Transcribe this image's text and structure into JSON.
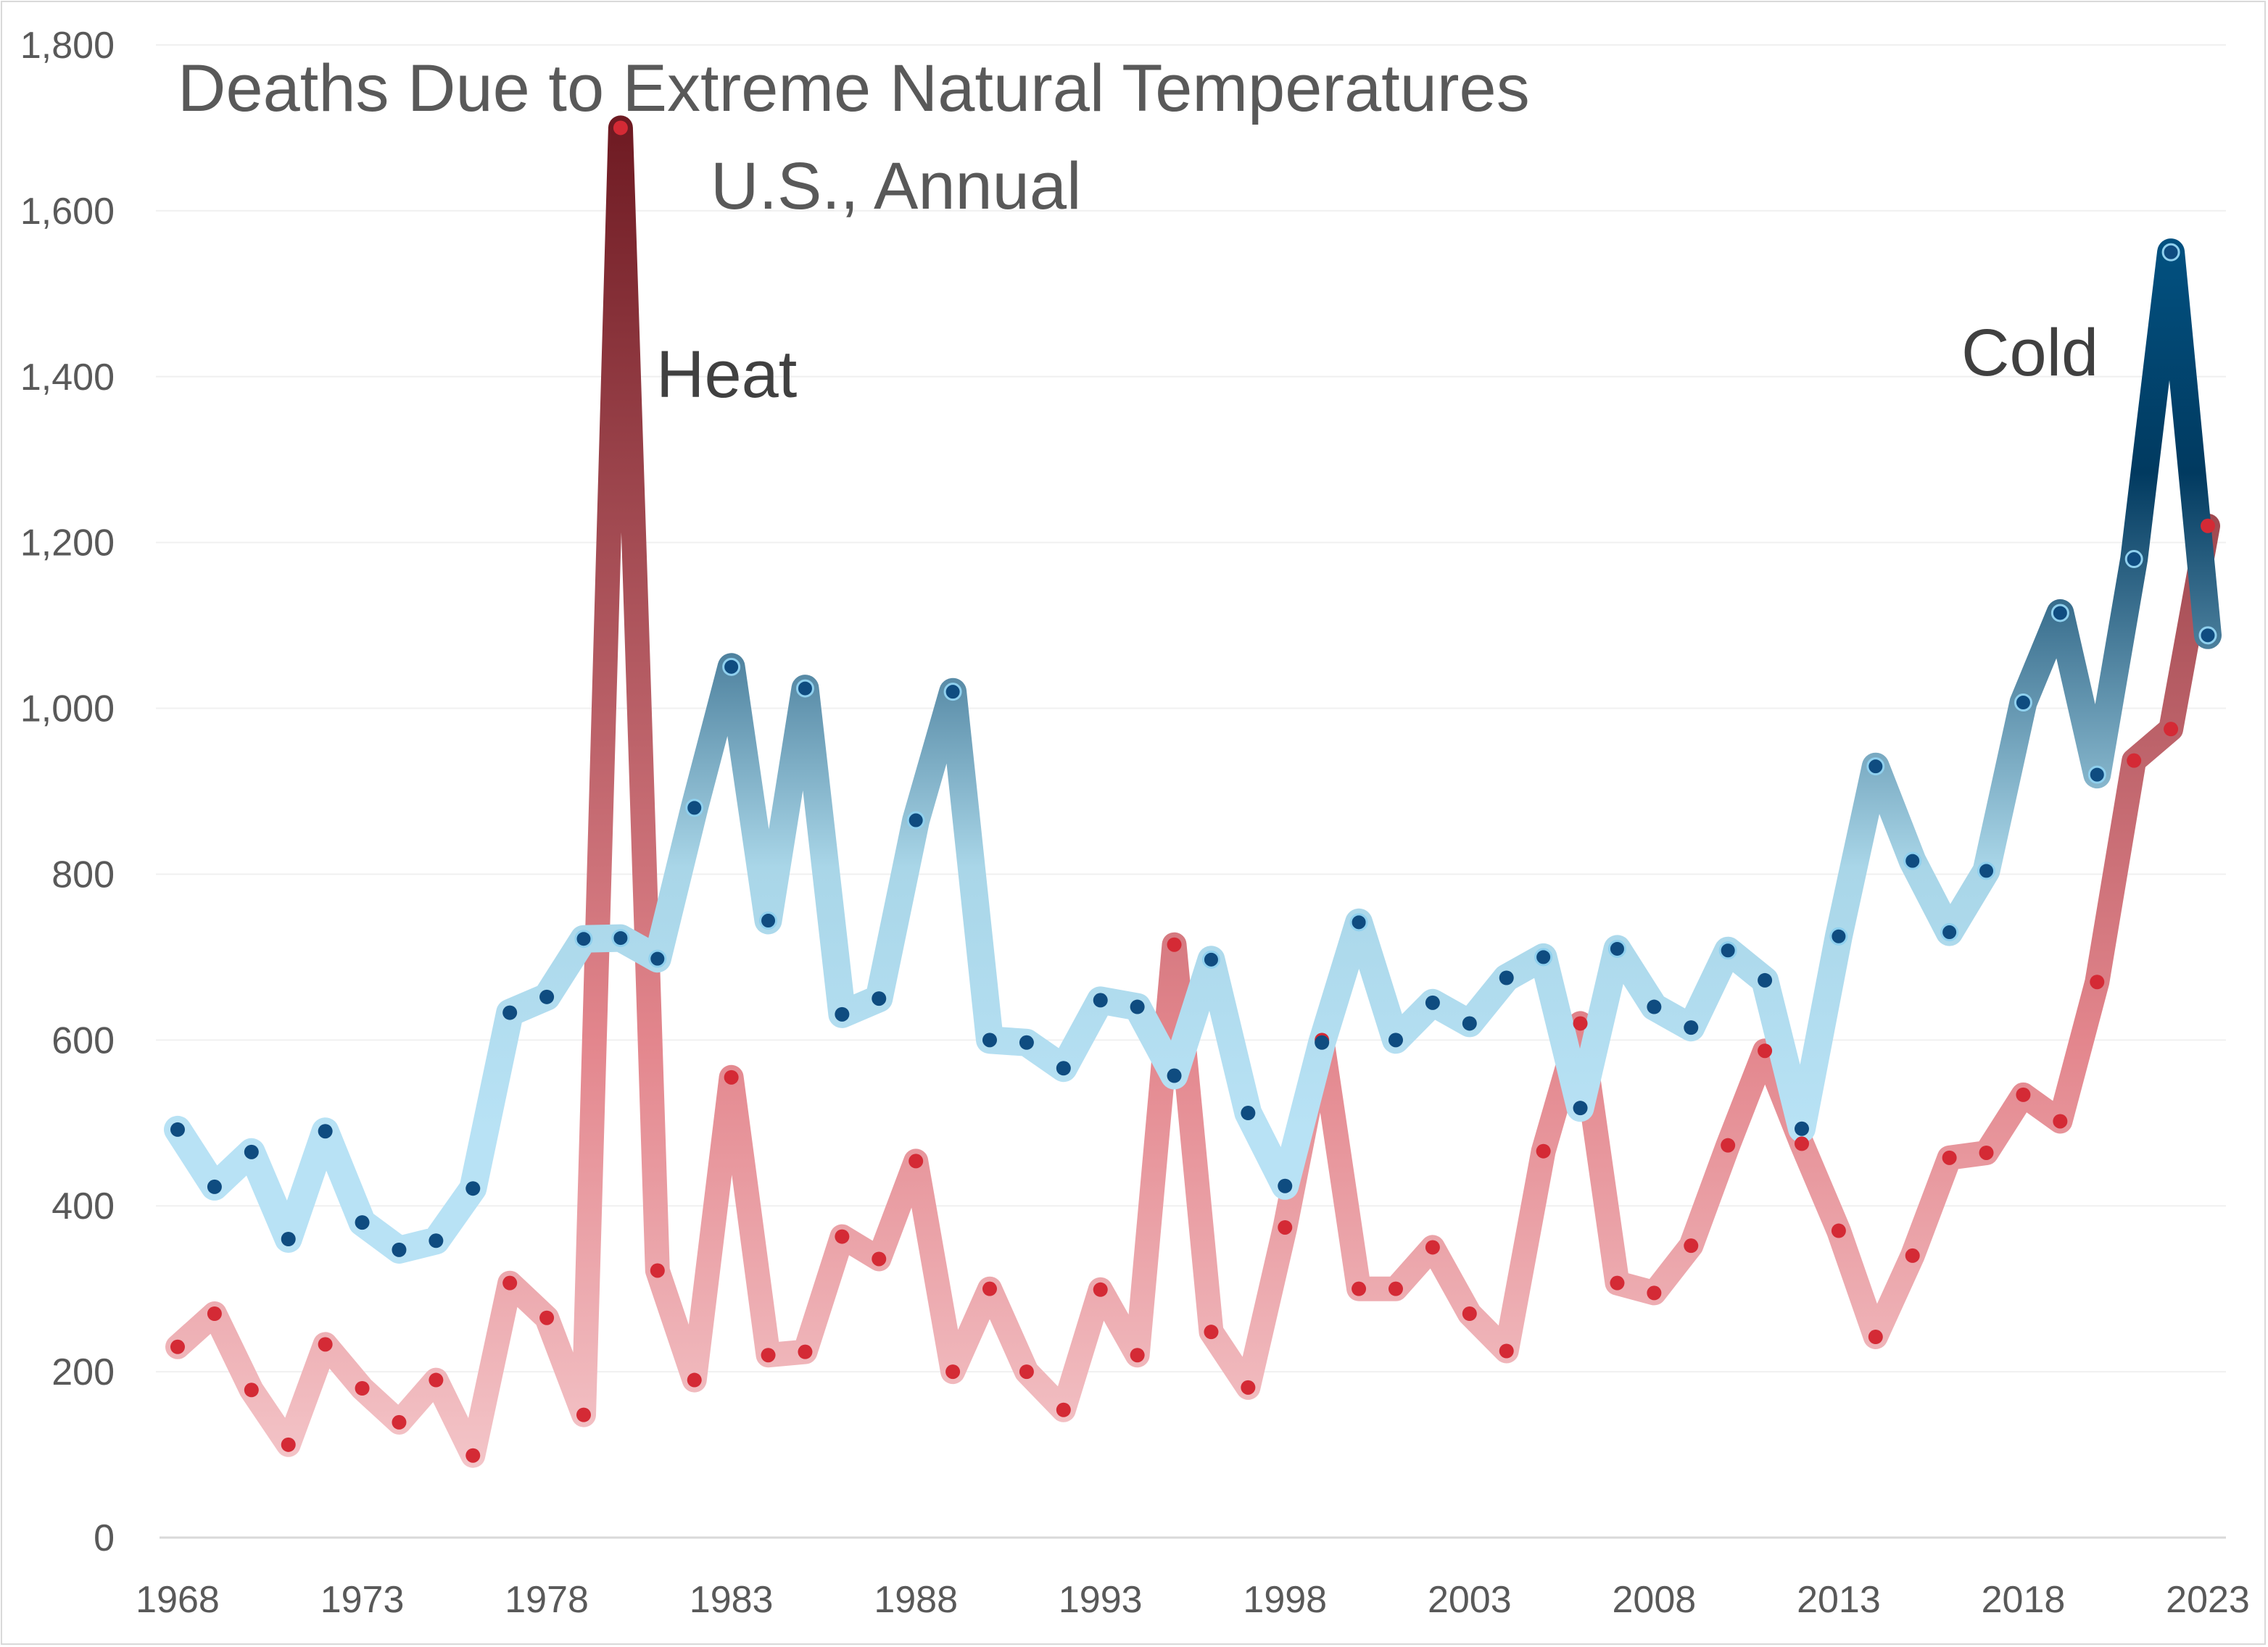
{
  "chart_data": {
    "type": "line",
    "title": "Deaths Due to Extreme Natural Temperatures",
    "subtitle": "U.S., Annual",
    "xlabel": "",
    "ylabel": "",
    "ylim": [
      0,
      1800
    ],
    "yticks": [
      0,
      200,
      400,
      600,
      800,
      1000,
      1200,
      1400,
      1600,
      1800
    ],
    "ytick_labels": [
      "0",
      "200",
      "400",
      "600",
      "800",
      "1,000",
      "1,200",
      "1,400",
      "1,600",
      "1,800"
    ],
    "xlim": [
      1968,
      2023
    ],
    "xticks": [
      1968,
      1973,
      1978,
      1983,
      1988,
      1993,
      1998,
      2003,
      2008,
      2013,
      2018,
      2023
    ],
    "xtick_labels": [
      "1968",
      "1973",
      "1978",
      "1983",
      "1988",
      "1993",
      "1998",
      "2003",
      "2008",
      "2013",
      "2018",
      "2023"
    ],
    "grid": "horizontal",
    "legend": "none",
    "x": [
      1968,
      1969,
      1970,
      1971,
      1972,
      1973,
      1974,
      1975,
      1976,
      1977,
      1978,
      1979,
      1980,
      1981,
      1982,
      1983,
      1984,
      1985,
      1986,
      1987,
      1988,
      1989,
      1990,
      1991,
      1992,
      1993,
      1994,
      1995,
      1996,
      1997,
      1998,
      1999,
      2000,
      2001,
      2002,
      2003,
      2004,
      2005,
      2006,
      2007,
      2008,
      2009,
      2010,
      2011,
      2012,
      2013,
      2014,
      2015,
      2016,
      2017,
      2018,
      2019,
      2020,
      2021,
      2022,
      2023
    ],
    "series": [
      {
        "name": "Heat",
        "color_light": "#f6cfd2",
        "color_dark": "#6e1a22",
        "marker_color": "#d42a35",
        "values": [
          230,
          270,
          178,
          112,
          233,
          180,
          139,
          190,
          99,
          307,
          265,
          148,
          1700,
          322,
          190,
          555,
          220,
          224,
          363,
          336,
          454,
          200,
          300,
          200,
          154,
          299,
          220,
          715,
          248,
          181,
          374,
          600,
          300,
          300,
          350,
          270,
          225,
          466,
          620,
          307,
          295,
          352,
          473,
          587,
          475,
          370,
          242,
          340,
          458,
          464,
          534,
          502,
          670,
          937,
          975,
          1220
        ]
      },
      {
        "name": "Cold",
        "color_light": "#b8e2f5",
        "color_dark": "#003d66",
        "marker_color": "#0f4c80",
        "values": [
          492,
          423,
          465,
          360,
          490,
          380,
          347,
          358,
          421,
          633,
          652,
          722,
          723,
          698,
          880,
          1050,
          744,
          1024,
          631,
          650,
          865,
          1020,
          600,
          597,
          566,
          648,
          640,
          557,
          697,
          512,
          424,
          597,
          742,
          600,
          645,
          620,
          675,
          700,
          518,
          710,
          640,
          615,
          708,
          672,
          493,
          725,
          930,
          816,
          730,
          804,
          1007,
          1115,
          920,
          1180,
          1550,
          1088
        ]
      }
    ],
    "annotations": [
      {
        "text": "Heat",
        "series": "Heat"
      },
      {
        "text": "Cold",
        "series": "Cold"
      }
    ]
  }
}
